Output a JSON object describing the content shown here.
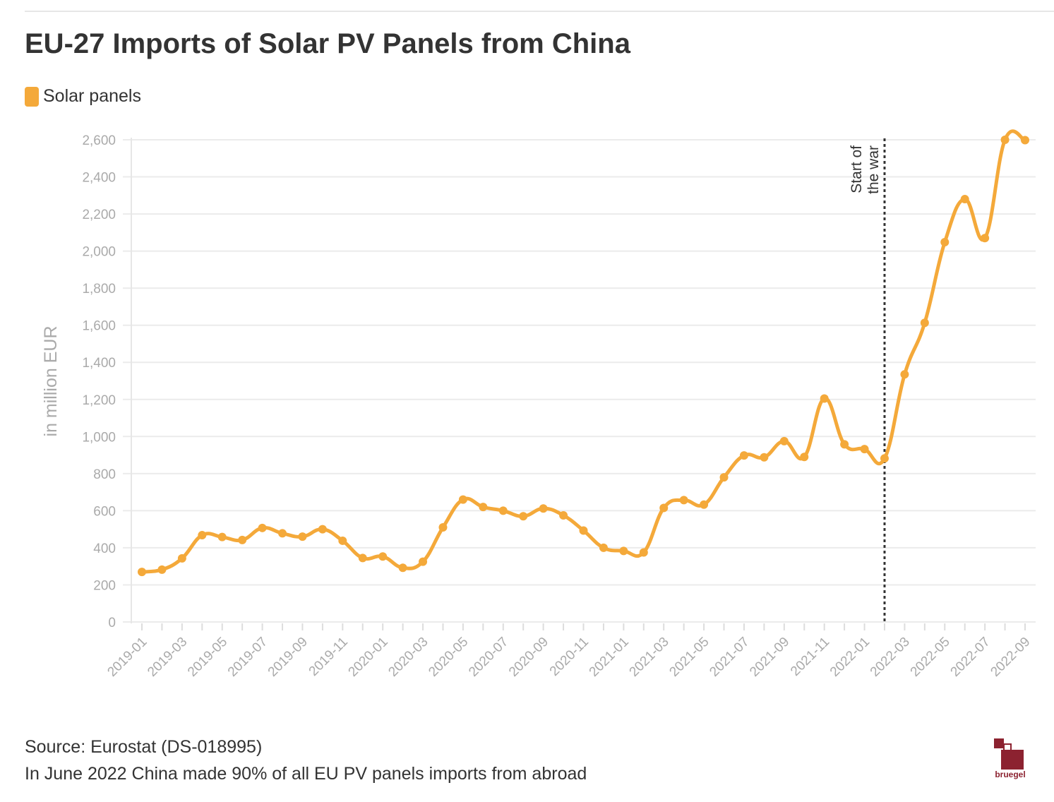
{
  "title": "EU-27 Imports of Solar PV Panels from China",
  "legend": {
    "label": "Solar panels",
    "color": "#F4A93A"
  },
  "annotation": {
    "line1": "Start of",
    "line2": "the war",
    "x": "2022-02"
  },
  "footer": {
    "source": "Source: Eurostat (DS-018995)",
    "note": "In June 2022 China made 90% of all EU PV panels imports from abroad"
  },
  "logo": {
    "text": "bruegel",
    "color": "#8C2230"
  },
  "chart_data": {
    "type": "line",
    "title": "EU-27 Imports of Solar PV Panels from China",
    "xlabel": "",
    "ylabel": "in million EUR",
    "ylim": [
      0,
      2600
    ],
    "yticks": [
      0,
      200,
      400,
      600,
      800,
      1000,
      1200,
      1400,
      1600,
      1800,
      2000,
      2200,
      2400,
      2600
    ],
    "ytick_labels": [
      "0",
      "200",
      "400",
      "600",
      "800",
      "1,000",
      "1,200",
      "1,400",
      "1,600",
      "1,800",
      "2,000",
      "2,200",
      "2,400",
      "2,600"
    ],
    "grid": true,
    "x": [
      "2019-01",
      "2019-02",
      "2019-03",
      "2019-04",
      "2019-05",
      "2019-06",
      "2019-07",
      "2019-08",
      "2019-09",
      "2019-10",
      "2019-11",
      "2019-12",
      "2020-01",
      "2020-02",
      "2020-03",
      "2020-04",
      "2020-05",
      "2020-06",
      "2020-07",
      "2020-08",
      "2020-09",
      "2020-10",
      "2020-11",
      "2020-12",
      "2021-01",
      "2021-02",
      "2021-03",
      "2021-04",
      "2021-05",
      "2021-06",
      "2021-07",
      "2021-08",
      "2021-09",
      "2021-10",
      "2021-11",
      "2021-12",
      "2022-01",
      "2022-02",
      "2022-03",
      "2022-04",
      "2022-05",
      "2022-06",
      "2022-07",
      "2022-08",
      "2022-09"
    ],
    "xtick_labels": [
      "2019-01",
      "2019-03",
      "2019-05",
      "2019-07",
      "2019-09",
      "2019-11",
      "2020-01",
      "2020-03",
      "2020-05",
      "2020-07",
      "2020-09",
      "2020-11",
      "2021-01",
      "2021-03",
      "2021-05",
      "2021-07",
      "2021-09",
      "2021-11",
      "2022-01",
      "2022-03",
      "2022-05",
      "2022-07",
      "2022-09"
    ],
    "series": [
      {
        "name": "Solar panels",
        "color": "#F4A93A",
        "values": [
          270,
          282,
          343,
          468,
          458,
          442,
          507,
          478,
          460,
          500,
          438,
          345,
          353,
          292,
          325,
          510,
          660,
          620,
          600,
          570,
          612,
          575,
          493,
          400,
          383,
          375,
          615,
          657,
          633,
          780,
          898,
          888,
          975,
          890,
          1205,
          958,
          932,
          882,
          1335,
          1613,
          2048,
          2280,
          2070,
          2600,
          2598
        ]
      }
    ]
  }
}
